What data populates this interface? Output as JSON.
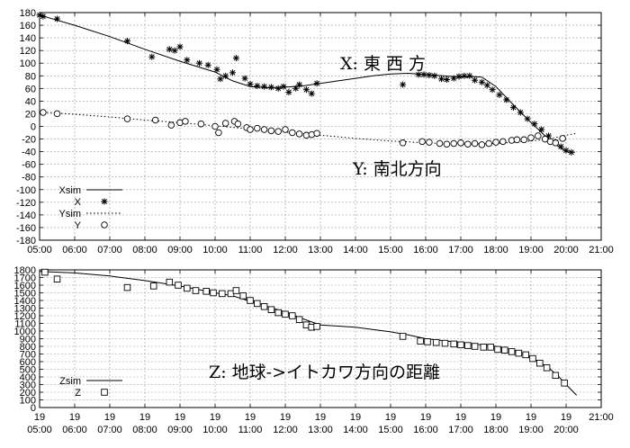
{
  "chart_data": [
    {
      "type": "scatter",
      "annotation_x": "X: 東 西 方",
      "annotation_y": "Y: 南北方向",
      "x_ticks": [
        "05:00",
        "06:00",
        "07:00",
        "08:00",
        "09:00",
        "10:00",
        "11:00",
        "12:00",
        "13:00",
        "14:00",
        "15:00",
        "16:00",
        "17:00",
        "18:00",
        "19:00",
        "20:00",
        "21:00"
      ],
      "y_ticks": [
        180,
        160,
        140,
        120,
        100,
        80,
        60,
        40,
        20,
        0,
        -20,
        -40,
        -60,
        -80,
        -100,
        -120,
        -140,
        -160,
        -180
      ],
      "xlim": [
        5,
        21
      ],
      "ylim": [
        -180,
        180
      ],
      "grid": true,
      "legend_position": "bottom-left",
      "series": [
        {
          "name": "Xsim",
          "style": "solid-line",
          "x": [
            5.0,
            6.0,
            7.0,
            8.0,
            9.0,
            10.0,
            10.5,
            11.0,
            11.5,
            12.0,
            12.5,
            13.0,
            13.5,
            14.0,
            14.5,
            15.0,
            15.5,
            16.0,
            16.5,
            17.0,
            17.3,
            17.6,
            18.0,
            18.5,
            19.0,
            19.5,
            20.0,
            20.25
          ],
          "y": [
            176,
            160,
            142,
            122,
            103,
            86,
            72,
            63,
            61,
            62,
            64,
            68,
            72,
            76,
            80,
            83,
            84,
            82,
            80,
            78,
            79,
            78,
            63,
            34,
            6,
            -20,
            -40,
            -41
          ]
        },
        {
          "name": "X",
          "style": "star",
          "x": [
            5.0,
            5.1,
            5.5,
            7.5,
            8.2,
            8.7,
            8.85,
            9.0,
            9.2,
            9.55,
            9.8,
            10.05,
            10.15,
            10.3,
            10.5,
            10.6,
            10.85,
            11.0,
            11.2,
            11.4,
            11.6,
            11.8,
            11.95,
            12.1,
            12.3,
            12.4,
            12.6,
            12.75,
            12.9,
            15.35,
            15.8,
            15.95,
            16.1,
            16.25,
            16.45,
            16.6,
            16.8,
            16.95,
            17.1,
            17.25,
            17.4,
            17.6,
            17.75,
            17.9,
            18.1,
            18.3,
            18.5,
            18.7,
            18.9,
            19.1,
            19.3,
            19.5,
            19.7,
            19.85,
            20.0,
            20.15
          ],
          "y": [
            176,
            174,
            170,
            135,
            110,
            122,
            120,
            126,
            105,
            100,
            97,
            90,
            75,
            80,
            85,
            108,
            76,
            67,
            64,
            63,
            62,
            60,
            63,
            54,
            60,
            66,
            58,
            52,
            68,
            66,
            82,
            82,
            81,
            80,
            75,
            74,
            76,
            79,
            80,
            80,
            73,
            70,
            65,
            58,
            50,
            42,
            30,
            22,
            12,
            4,
            -5,
            -15,
            -25,
            -32,
            -38,
            -41
          ]
        },
        {
          "name": "Ysim",
          "style": "dotted-line",
          "x": [
            5.0,
            6.0,
            7.0,
            8.0,
            9.0,
            10.0,
            11.0,
            12.0,
            13.0,
            14.0,
            15.0,
            16.0,
            17.0,
            18.0,
            19.0,
            19.5,
            20.0,
            20.3
          ],
          "y": [
            23,
            19,
            15,
            10,
            6,
            1,
            -4,
            -9,
            -14,
            -19,
            -23,
            -26,
            -28,
            -27,
            -23,
            -20,
            -14,
            -11
          ]
        },
        {
          "name": "Y",
          "style": "circle",
          "x": [
            5.1,
            5.5,
            7.5,
            8.3,
            8.75,
            9.0,
            9.15,
            9.6,
            10.0,
            10.1,
            10.3,
            10.55,
            10.65,
            10.9,
            11.0,
            11.2,
            11.4,
            11.6,
            11.8,
            12.0,
            12.2,
            12.4,
            12.6,
            12.75,
            12.9,
            15.35,
            15.9,
            16.1,
            16.4,
            16.6,
            16.8,
            17.0,
            17.2,
            17.4,
            17.6,
            17.8,
            18.0,
            18.2,
            18.45,
            18.6,
            18.8,
            19.0,
            19.2,
            19.4,
            19.55,
            19.7,
            19.9
          ],
          "y": [
            22,
            20,
            12,
            10,
            2,
            6,
            8,
            4,
            0,
            -10,
            5,
            8,
            4,
            -2,
            -5,
            -3,
            -5,
            -7,
            -8,
            -5,
            -10,
            -12,
            -14,
            -13,
            -11,
            -26,
            -24,
            -25,
            -27,
            -28,
            -27,
            -26,
            -28,
            -27,
            -29,
            -27,
            -25,
            -24,
            -22,
            -21,
            -21,
            -18,
            -15,
            -20,
            -24,
            -26,
            -19
          ]
        }
      ]
    },
    {
      "type": "scatter",
      "annotation": "Z: 地球->イトカワ方向の距離",
      "x_ticks": [
        "19\n05:00",
        "19\n06:00",
        "19\n07:00",
        "19\n08:00",
        "19\n09:00",
        "19\n10:00",
        "19\n11:00",
        "19\n12:00",
        "19\n13:00",
        "19\n14:00",
        "19\n15:00",
        "19\n16:00",
        "19\n17:00",
        "19\n18:00",
        "19\n19:00",
        "19\n20:00",
        "21:00"
      ],
      "y_ticks": [
        1800,
        1700,
        1600,
        1500,
        1400,
        1300,
        1200,
        1100,
        1000,
        900,
        800,
        700,
        600,
        500,
        400,
        300,
        200,
        100,
        0
      ],
      "xlim": [
        5,
        21
      ],
      "ylim": [
        0,
        1800
      ],
      "grid": true,
      "legend_position": "bottom-left",
      "series": [
        {
          "name": "Zsim",
          "style": "solid-line",
          "x": [
            5.0,
            6.0,
            7.0,
            8.0,
            9.0,
            10.0,
            10.5,
            11.0,
            11.5,
            12.0,
            12.5,
            13.0,
            14.0,
            15.0,
            15.5,
            16.0,
            17.0,
            18.0,
            18.5,
            19.0,
            19.5,
            19.8,
            20.0,
            20.3
          ],
          "y": [
            1780,
            1760,
            1720,
            1660,
            1590,
            1500,
            1460,
            1390,
            1320,
            1250,
            1160,
            1080,
            1050,
            990,
            950,
            900,
            850,
            800,
            750,
            660,
            520,
            400,
            300,
            160
          ]
        },
        {
          "name": "Z",
          "style": "square",
          "x": [
            5.15,
            5.5,
            7.5,
            8.25,
            8.7,
            8.95,
            9.2,
            9.45,
            9.75,
            9.95,
            10.2,
            10.45,
            10.6,
            10.8,
            11.0,
            11.2,
            11.4,
            11.6,
            11.8,
            12.0,
            12.2,
            12.4,
            12.6,
            12.75,
            12.9,
            15.35,
            15.85,
            16.05,
            16.3,
            16.55,
            16.8,
            17.0,
            17.2,
            17.4,
            17.65,
            17.85,
            18.05,
            18.25,
            18.45,
            18.65,
            18.85,
            19.05,
            19.25,
            19.45,
            19.7,
            19.95
          ],
          "y": [
            1770,
            1680,
            1570,
            1590,
            1640,
            1600,
            1560,
            1530,
            1520,
            1500,
            1490,
            1490,
            1530,
            1460,
            1400,
            1360,
            1320,
            1280,
            1240,
            1220,
            1200,
            1150,
            1080,
            1050,
            1060,
            930,
            870,
            860,
            850,
            840,
            830,
            820,
            810,
            800,
            790,
            790,
            760,
            750,
            730,
            710,
            690,
            640,
            580,
            520,
            420,
            320
          ]
        }
      ]
    }
  ]
}
